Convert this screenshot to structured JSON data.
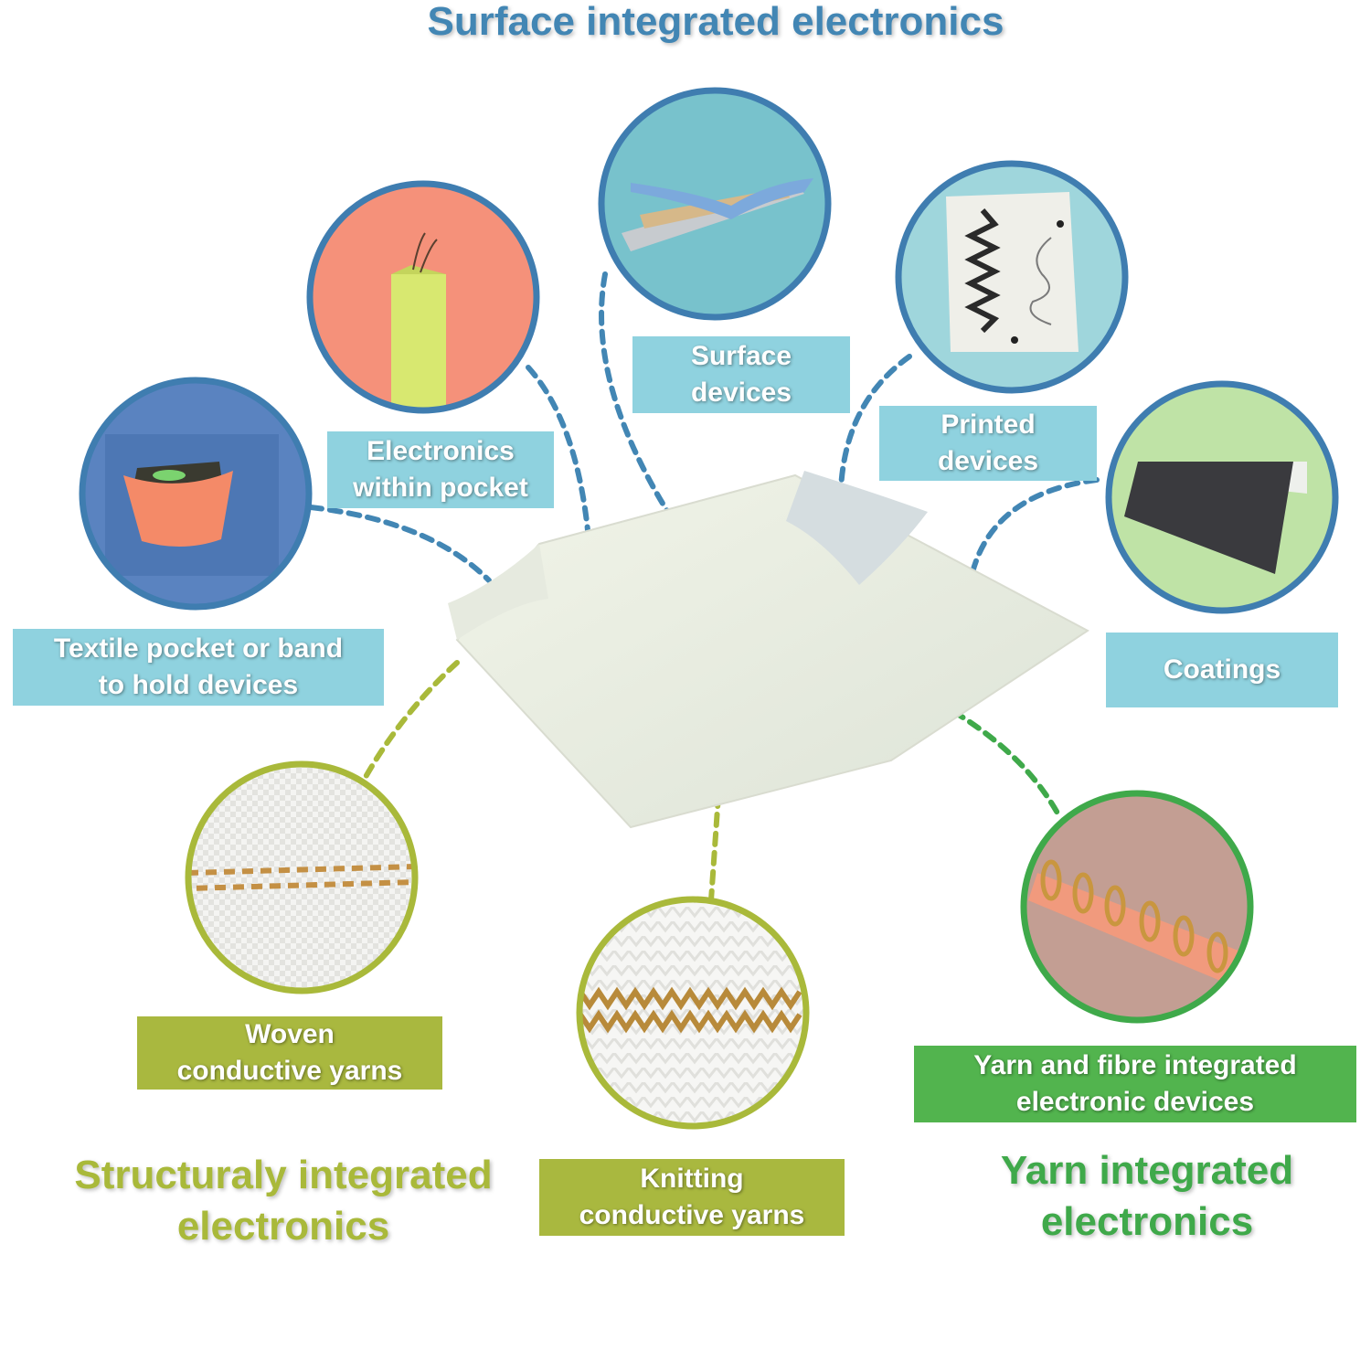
{
  "titles": {
    "surface": "Surface integrated electronics",
    "structural": [
      "Structuraly integrated",
      "electronics"
    ],
    "yarn": [
      "Yarn integrated",
      "electronics"
    ]
  },
  "labels": {
    "pocket": [
      "Textile pocket or band",
      "to hold devices"
    ],
    "within_pocket": [
      "Electronics",
      "within pocket"
    ],
    "surface_devices": [
      "Surface",
      "devices"
    ],
    "printed": [
      "Printed",
      "devices"
    ],
    "coatings": [
      "Coatings"
    ],
    "woven": [
      "Woven",
      "conductive yarns"
    ],
    "knitting": [
      "Knitting",
      "conductive yarns"
    ],
    "yarn_fibre": [
      "Yarn and fibre integrated",
      "electronic devices"
    ]
  },
  "colors": {
    "surface_blue": "#4286b4",
    "label_blue": "#8fd2df",
    "structural_olive": "#a9b93a",
    "yarn_green": "#3fa94a"
  }
}
